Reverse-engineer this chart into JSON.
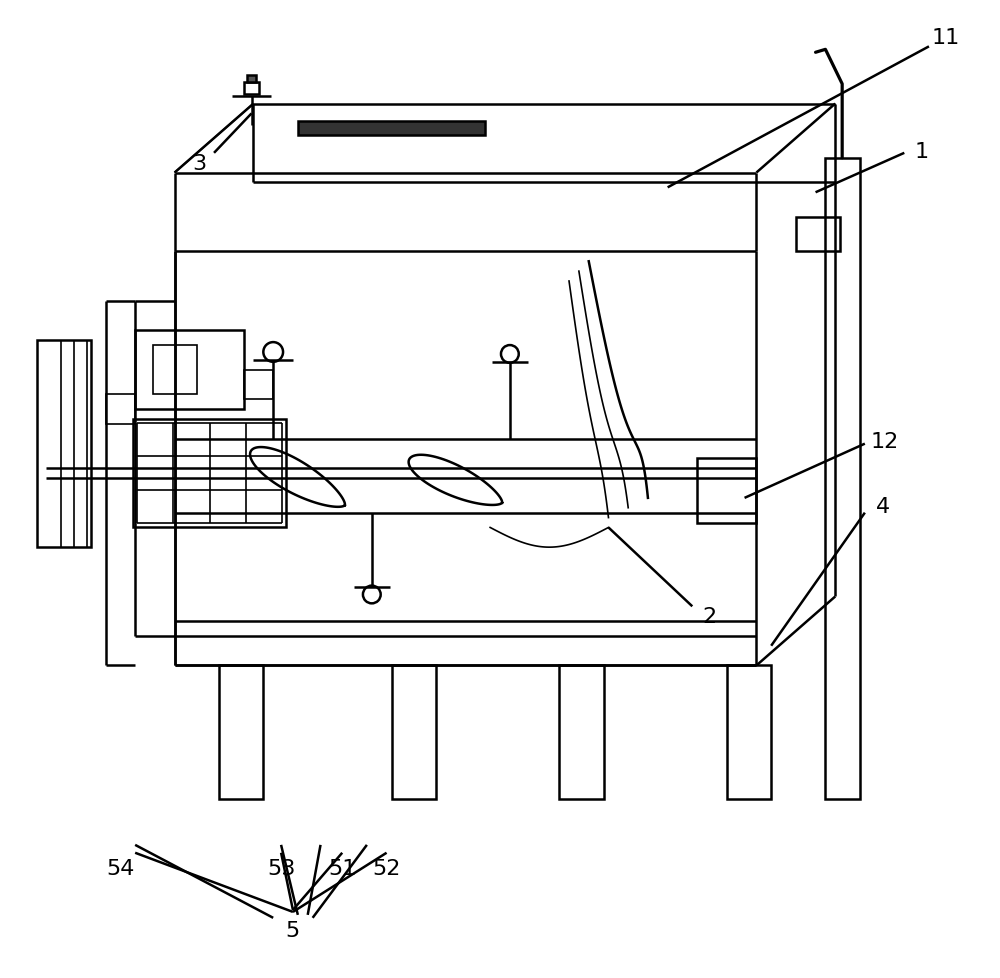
{
  "bg_color": "#ffffff",
  "line_color": "#000000",
  "lw_main": 1.8,
  "lw_thin": 1.2,
  "fig_width": 10.0,
  "fig_height": 9.79
}
